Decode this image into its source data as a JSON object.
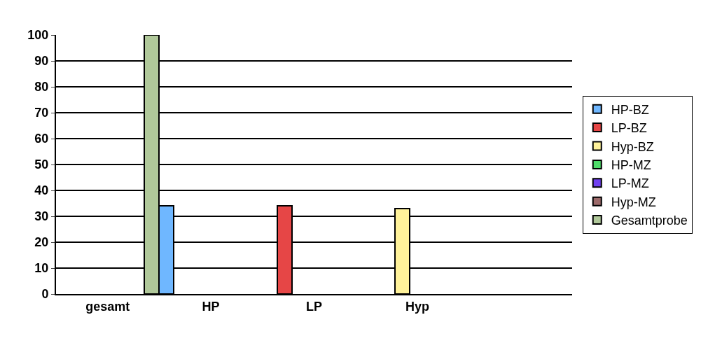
{
  "chart_data": {
    "type": "bar",
    "categories": [
      "gesamt",
      "HP",
      "LP",
      "Hyp",
      null
    ],
    "series": [
      {
        "name": "HP-BZ",
        "color": "#6fb7ff",
        "values": [
          null,
          34,
          null,
          null,
          null
        ]
      },
      {
        "name": "LP-BZ",
        "color": "#e64646",
        "values": [
          null,
          null,
          34,
          null,
          null
        ]
      },
      {
        "name": "Hyp-BZ",
        "color": "#fff29a",
        "values": [
          null,
          null,
          null,
          33,
          null
        ]
      },
      {
        "name": "HP-MZ",
        "color": "#4fdc6a",
        "values": [
          null,
          null,
          null,
          null,
          null
        ]
      },
      {
        "name": "LP-MZ",
        "color": "#7040f0",
        "values": [
          null,
          null,
          null,
          null,
          null
        ]
      },
      {
        "name": "Hyp-MZ",
        "color": "#9c6a6a",
        "values": [
          null,
          null,
          null,
          null,
          null
        ]
      },
      {
        "name": "Gesamtprobe",
        "color": "#b0c89a",
        "values": [
          100,
          null,
          null,
          null,
          null
        ]
      }
    ],
    "ylim": [
      0,
      100
    ],
    "yticks": [
      0,
      10,
      20,
      30,
      40,
      50,
      60,
      70,
      80,
      90,
      100
    ],
    "grid": "y",
    "legend": "right"
  }
}
